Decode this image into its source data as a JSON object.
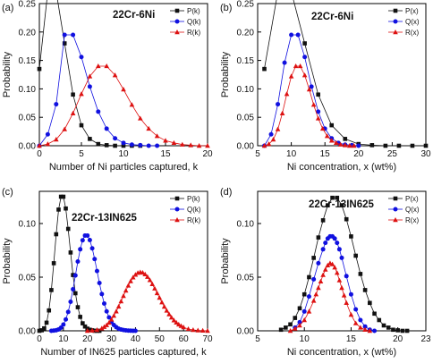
{
  "chart_data": [
    {
      "type": "line",
      "panel_label": "(a)",
      "title": "22Cr-6Ni",
      "xlabel": "Number of Ni particles captured, k",
      "ylabel": "Probability",
      "xlim": [
        0,
        20
      ],
      "ylim": [
        0,
        0.25
      ],
      "xticks": [
        "0",
        "5",
        "10",
        "15",
        "20"
      ],
      "yticks": [
        "0.00",
        "0.05",
        "0.10",
        "0.15",
        "0.20",
        "0.25"
      ],
      "grid": false,
      "legend_position": "top-right",
      "series": [
        {
          "name": "P(k)",
          "marker": "square",
          "color": "#111111",
          "x": [
            0,
            1,
            2,
            3,
            4,
            5,
            6,
            7,
            8,
            9,
            10,
            11,
            12
          ],
          "y": [
            0.135,
            0.271,
            0.271,
            0.18,
            0.09,
            0.036,
            0.012,
            0.003,
            0.001,
            0.0,
            0.0,
            0.0,
            0.0
          ]
        },
        {
          "name": "Q(k)",
          "marker": "circle",
          "color": "#1010e0",
          "x": [
            0,
            1,
            2,
            3,
            4,
            5,
            6,
            7,
            8,
            9,
            10,
            11,
            12,
            13,
            14
          ],
          "y": [
            0.0,
            0.02,
            0.073,
            0.195,
            0.195,
            0.156,
            0.104,
            0.06,
            0.03,
            0.013,
            0.005,
            0.002,
            0.001,
            0.0,
            0.0
          ]
        },
        {
          "name": "R(k)",
          "marker": "triangle",
          "color": "#dd1111",
          "x": [
            0,
            1,
            2,
            3,
            4,
            5,
            6,
            7,
            8,
            9,
            10,
            11,
            12,
            13,
            14,
            15,
            16,
            17,
            18,
            19,
            20
          ],
          "y": [
            0.0,
            0.003,
            0.011,
            0.029,
            0.057,
            0.091,
            0.122,
            0.14,
            0.14,
            0.124,
            0.099,
            0.072,
            0.048,
            0.03,
            0.017,
            0.009,
            0.005,
            0.002,
            0.001,
            0.0,
            0.0
          ]
        }
      ]
    },
    {
      "type": "line",
      "panel_label": "(b)",
      "title": "22Cr-6Ni",
      "xlabel": "Ni concentration, x (wt%)",
      "ylabel": "Probability",
      "xlim": [
        5,
        30
      ],
      "ylim": [
        0,
        0.25
      ],
      "xticks": [
        "5",
        "10",
        "15",
        "20",
        "25",
        "30"
      ],
      "yticks": [
        "0.00",
        "0.05",
        "0.10",
        "0.15",
        "0.20",
        "0.25"
      ],
      "grid": false,
      "legend_position": "top-right",
      "series": [
        {
          "name": "P(x)",
          "marker": "square",
          "color": "#111111",
          "x": [
            6,
            8,
            10,
            12,
            14,
            16,
            18,
            20,
            22,
            24,
            26,
            28,
            30
          ],
          "y": [
            0.135,
            0.271,
            0.271,
            0.18,
            0.09,
            0.036,
            0.012,
            0.003,
            0.001,
            0.0,
            0.0,
            0.0,
            0.0
          ]
        },
        {
          "name": "Q(x)",
          "marker": "circle",
          "color": "#1010e0",
          "x": [
            6,
            7,
            8,
            9,
            10,
            11,
            12,
            13,
            14,
            15,
            16,
            17,
            18,
            19,
            20
          ],
          "y": [
            0.0,
            0.02,
            0.073,
            0.146,
            0.195,
            0.195,
            0.156,
            0.104,
            0.06,
            0.03,
            0.013,
            0.005,
            0.002,
            0.001,
            0.0
          ]
        },
        {
          "name": "R(x)",
          "marker": "triangle",
          "color": "#dd1111",
          "x": [
            6,
            6.67,
            7.33,
            8,
            8.67,
            9.33,
            10,
            10.67,
            11.33,
            12,
            12.67,
            13.33,
            14,
            14.67,
            15.33,
            16,
            16.67,
            17.33,
            18,
            18.67,
            19.33
          ],
          "y": [
            0.0,
            0.003,
            0.011,
            0.029,
            0.057,
            0.091,
            0.122,
            0.14,
            0.14,
            0.124,
            0.099,
            0.072,
            0.048,
            0.03,
            0.017,
            0.009,
            0.005,
            0.002,
            0.001,
            0.0,
            0.0
          ]
        }
      ]
    },
    {
      "type": "line",
      "panel_label": "(c)",
      "title": "22Cr-13IN625",
      "xlabel": "Number of IN625 particles captured, k",
      "ylabel": "Probability",
      "xlim": [
        0,
        70
      ],
      "ylim": [
        0,
        0.13
      ],
      "xticks": [
        "0",
        "10",
        "20",
        "30",
        "40",
        "50",
        "60",
        "70"
      ],
      "yticks": [
        "0.00",
        "0.05",
        "0.10"
      ],
      "grid": false,
      "legend_position": "top-right",
      "series": [
        {
          "name": "P(k)",
          "marker": "square",
          "color": "#111111",
          "x": [
            0,
            1,
            2,
            3,
            4,
            5,
            6,
            7,
            8,
            9,
            10,
            11,
            12,
            13,
            14,
            15,
            16,
            17,
            18,
            19,
            20,
            21,
            22,
            23,
            24,
            25
          ],
          "y": [
            0.0,
            0.0005,
            0.0023,
            0.0076,
            0.019,
            0.038,
            0.063,
            0.09,
            0.113,
            0.125,
            0.125,
            0.114,
            0.095,
            0.073,
            0.052,
            0.035,
            0.022,
            0.013,
            0.007,
            0.004,
            0.002,
            0.001,
            0.0005,
            0.0,
            0.0,
            0.0
          ]
        },
        {
          "name": "Q(k)",
          "marker": "circle",
          "color": "#1010e0",
          "x": [
            5,
            6,
            7,
            8,
            9,
            10,
            11,
            12,
            13,
            14,
            15,
            16,
            17,
            18,
            19,
            20,
            21,
            22,
            23,
            24,
            25,
            26,
            27,
            28,
            29,
            30,
            31,
            32,
            33,
            34,
            35,
            36,
            37,
            38,
            39,
            40
          ],
          "y": [
            0.0,
            0.0002,
            0.0005,
            0.0013,
            0.0029,
            0.0058,
            0.0106,
            0.0176,
            0.0271,
            0.0387,
            0.0516,
            0.0646,
            0.076,
            0.0844,
            0.0888,
            0.0888,
            0.0846,
            0.0769,
            0.0669,
            0.0557,
            0.0446,
            0.0343,
            0.0254,
            0.0181,
            0.0125,
            0.0083,
            0.0054,
            0.0034,
            0.002,
            0.0012,
            0.0007,
            0.0004,
            0.0002,
            0.0001,
            0.0,
            0.0
          ]
        },
        {
          "name": "R(k)",
          "marker": "triangle",
          "color": "#dd1111",
          "x": [
            20,
            22,
            24,
            26,
            27,
            28,
            29,
            30,
            31,
            32,
            33,
            34,
            35,
            36,
            37,
            38,
            39,
            40,
            41,
            42,
            43,
            44,
            45,
            46,
            47,
            48,
            49,
            50,
            51,
            52,
            53,
            54,
            55,
            56,
            57,
            58,
            59,
            60,
            62,
            64,
            66,
            68,
            70
          ],
          "y": [
            0.0,
            0.0003,
            0.0008,
            0.0023,
            0.0036,
            0.0053,
            0.0076,
            0.0105,
            0.014,
            0.0181,
            0.0226,
            0.0275,
            0.0325,
            0.0375,
            0.0421,
            0.0462,
            0.0497,
            0.0523,
            0.054,
            0.0546,
            0.0542,
            0.0527,
            0.0503,
            0.0472,
            0.0435,
            0.0394,
            0.0351,
            0.0308,
            0.0265,
            0.0225,
            0.0188,
            0.0154,
            0.0124,
            0.0098,
            0.0077,
            0.0059,
            0.0045,
            0.0033,
            0.0017,
            0.0008,
            0.0004,
            0.0002,
            0.0
          ]
        }
      ]
    },
    {
      "type": "line",
      "panel_label": "(d)",
      "title": "22Cr-13IN625",
      "xlabel": "Ni concentration, x (wt%)",
      "ylabel": "Probability",
      "xlim": [
        5,
        23
      ],
      "ylim": [
        0,
        0.13
      ],
      "xticks": [
        "5",
        "10",
        "15",
        "20",
        "23"
      ],
      "yticks": [
        "0.00",
        "0.05",
        "0.10"
      ],
      "grid": false,
      "legend_position": "top-right",
      "series": [
        {
          "name": "P(x)",
          "marker": "square",
          "color": "#111111",
          "x": [
            7.5,
            8,
            8.5,
            9,
            9.5,
            10,
            10.5,
            11,
            11.5,
            12,
            12.5,
            13,
            13.5,
            14,
            14.5,
            15,
            15.5,
            16,
            16.5,
            17,
            17.5,
            18,
            18.5,
            19,
            19.5,
            20,
            20.5,
            21
          ],
          "y": [
            0.001,
            0.003,
            0.006,
            0.012,
            0.021,
            0.034,
            0.05,
            0.068,
            0.087,
            0.103,
            0.117,
            0.124,
            0.124,
            0.117,
            0.104,
            0.088,
            0.07,
            0.053,
            0.038,
            0.026,
            0.016,
            0.01,
            0.005,
            0.003,
            0.001,
            0.0005,
            0.0,
            0.0
          ]
        },
        {
          "name": "Q(x)",
          "marker": "circle",
          "color": "#1010e0",
          "x": [
            9,
            9.5,
            10,
            10.5,
            11,
            11.5,
            12,
            12.25,
            12.5,
            12.75,
            13,
            13.25,
            13.5,
            13.75,
            14,
            14.5,
            15,
            15.5,
            16,
            16.5,
            17,
            17.5
          ],
          "y": [
            0.003,
            0.008,
            0.018,
            0.032,
            0.048,
            0.063,
            0.076,
            0.082,
            0.086,
            0.088,
            0.088,
            0.086,
            0.082,
            0.076,
            0.068,
            0.051,
            0.034,
            0.02,
            0.01,
            0.004,
            0.001,
            0.0
          ]
        },
        {
          "name": "R(x)",
          "marker": "triangle",
          "color": "#dd1111",
          "x": [
            8.5,
            9,
            9.5,
            10,
            10.5,
            11,
            11.25,
            11.5,
            11.75,
            12,
            12.25,
            12.5,
            12.75,
            13,
            13.25,
            13.5,
            13.75,
            14,
            14.25,
            14.5,
            15,
            15.5,
            16,
            16.5,
            17
          ],
          "y": [
            0.0,
            0.002,
            0.005,
            0.01,
            0.018,
            0.028,
            0.034,
            0.04,
            0.046,
            0.052,
            0.057,
            0.061,
            0.063,
            0.062,
            0.059,
            0.054,
            0.047,
            0.04,
            0.033,
            0.026,
            0.015,
            0.007,
            0.003,
            0.001,
            0.0
          ]
        }
      ]
    }
  ]
}
